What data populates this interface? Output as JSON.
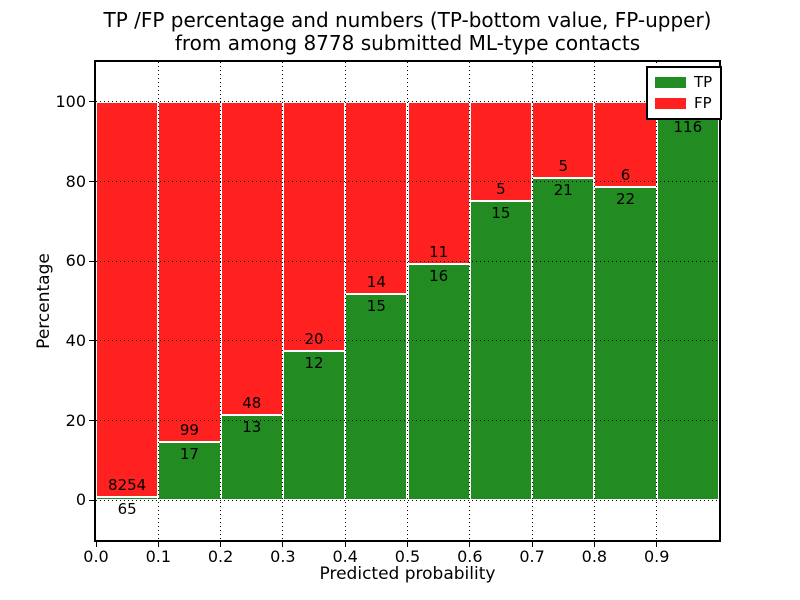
{
  "title": {
    "line1": "TP /FP percentage and numbers (TP-bottom value, FP-upper)",
    "line2": "from among 8778 submitted ML-type contacts"
  },
  "axes": {
    "xlabel": "Predicted probability",
    "ylabel": "Percentage",
    "xlim": [
      0.0,
      1.0
    ],
    "ylim": [
      -10,
      110
    ],
    "xtick_values": [
      0.0,
      0.1,
      0.2,
      0.3,
      0.4,
      0.5,
      0.6,
      0.7,
      0.8,
      0.9
    ],
    "xtick_labels": [
      "0.0",
      "0.1",
      "0.2",
      "0.3",
      "0.4",
      "0.5",
      "0.6",
      "0.7",
      "0.8",
      "0.9"
    ],
    "ytick_values": [
      0,
      20,
      40,
      60,
      80,
      100
    ],
    "ytick_labels": [
      "0",
      "20",
      "40",
      "60",
      "80",
      "100"
    ],
    "grid_style": "dotted",
    "grid_color": "#000000"
  },
  "legend": {
    "position": "upper right",
    "items": [
      {
        "label": "TP",
        "color": "#228b22"
      },
      {
        "label": "FP",
        "color": "#ff2020"
      }
    ]
  },
  "chart_data": {
    "type": "bar",
    "stacked": true,
    "title": "TP /FP percentage and numbers (TP-bottom value, FP-upper) from among 8778 submitted ML-type contacts",
    "xlabel": "Predicted probability",
    "ylabel": "Percentage",
    "total_submitted_contacts": 8778,
    "bin_width": 0.1,
    "bins": [
      "0.0-0.1",
      "0.1-0.2",
      "0.2-0.3",
      "0.3-0.4",
      "0.4-0.5",
      "0.5-0.6",
      "0.6-0.7",
      "0.7-0.8",
      "0.8-0.9",
      "0.9-1.0"
    ],
    "series": [
      {
        "name": "TP",
        "color": "#228b22",
        "counts": [
          65,
          17,
          13,
          12,
          15,
          16,
          15,
          21,
          22,
          116
        ],
        "percent": [
          0.78,
          14.66,
          21.31,
          37.5,
          51.72,
          59.26,
          75.0,
          80.77,
          78.57,
          96.67
        ]
      },
      {
        "name": "FP",
        "color": "#ff2020",
        "counts": [
          8254,
          99,
          48,
          20,
          14,
          11,
          5,
          5,
          6,
          null
        ],
        "percent": [
          99.22,
          85.34,
          78.69,
          62.5,
          48.28,
          40.74,
          25.0,
          19.23,
          21.43,
          3.33
        ]
      }
    ],
    "ylim": [
      -10,
      110
    ],
    "legend_position": "upper right",
    "grid": "dotted"
  }
}
